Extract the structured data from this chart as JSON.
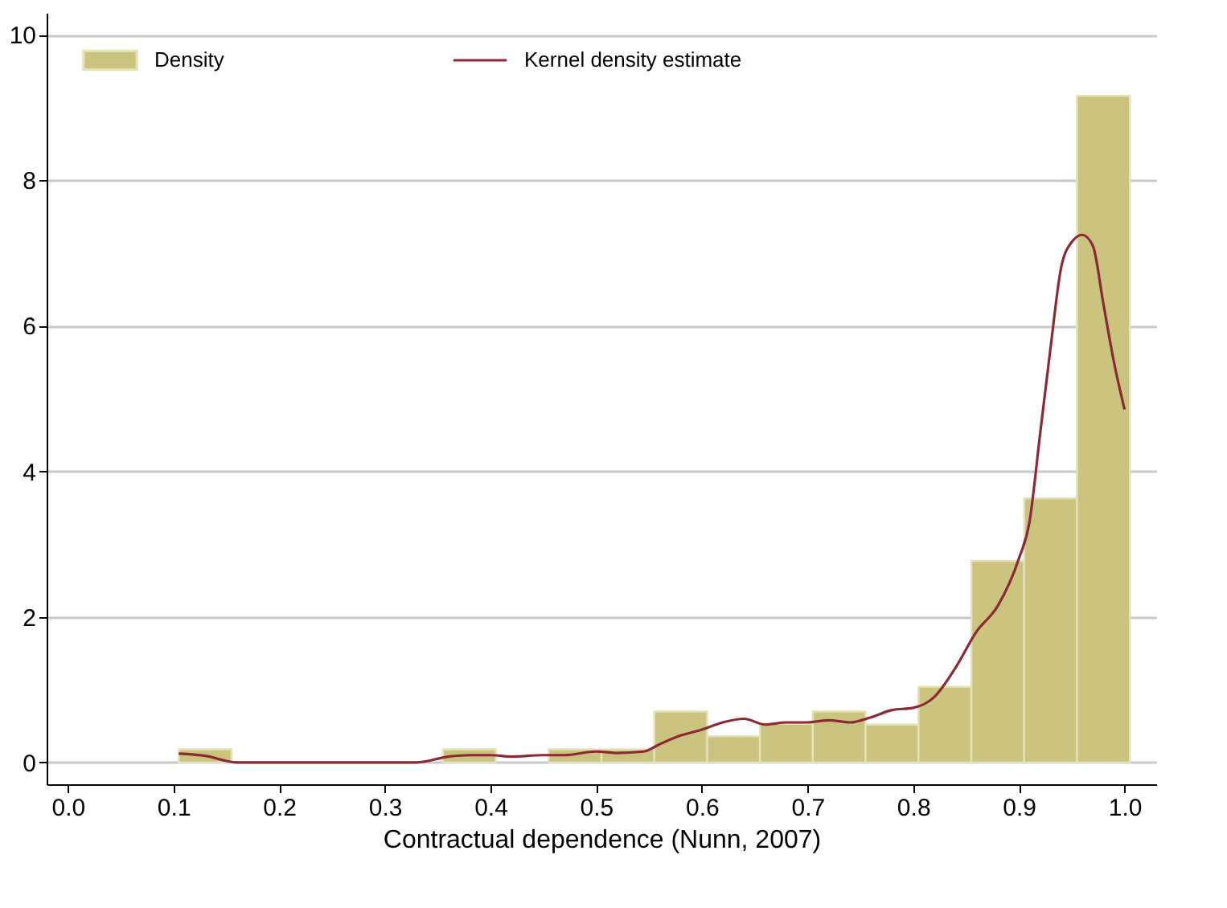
{
  "chart_data": {
    "type": "histogram",
    "xlabel": "Contractual dependence (Nunn, 2007)",
    "bins": [
      0.105,
      0.155,
      0.205,
      0.255,
      0.305,
      0.355,
      0.405,
      0.455,
      0.505,
      0.555,
      0.605,
      0.655,
      0.705,
      0.755,
      0.805,
      0.855,
      0.905,
      0.955,
      1.005
    ],
    "series": [
      {
        "name": "Density",
        "type": "histogram",
        "color": "#cbc47f",
        "values": [
          0.18,
          0,
          0,
          0,
          0,
          0.18,
          0,
          0.18,
          0.18,
          0.7,
          0.36,
          0.53,
          0.7,
          0.52,
          1.04,
          2.77,
          3.63,
          9.16
        ]
      },
      {
        "name": "Kernel density estimate",
        "type": "line",
        "color": "#8b2a35",
        "x": [
          0.105,
          0.13,
          0.16,
          0.2,
          0.3,
          0.33,
          0.36,
          0.38,
          0.4,
          0.42,
          0.45,
          0.47,
          0.5,
          0.52,
          0.545,
          0.56,
          0.58,
          0.6,
          0.62,
          0.64,
          0.66,
          0.68,
          0.7,
          0.72,
          0.74,
          0.76,
          0.78,
          0.8,
          0.82,
          0.84,
          0.86,
          0.88,
          0.9,
          0.91,
          0.92,
          0.93,
          0.94,
          0.95,
          0.96,
          0.97,
          0.98,
          0.99,
          1.0
        ],
        "values": [
          0.12,
          0.09,
          0,
          0,
          0,
          0,
          0.08,
          0.1,
          0.1,
          0.08,
          0.1,
          0.1,
          0.15,
          0.13,
          0.15,
          0.25,
          0.37,
          0.45,
          0.55,
          0.6,
          0.52,
          0.55,
          0.55,
          0.58,
          0.55,
          0.62,
          0.72,
          0.75,
          0.9,
          1.3,
          1.8,
          2.15,
          2.8,
          3.3,
          4.5,
          5.7,
          6.8,
          7.15,
          7.25,
          7.1,
          6.3,
          5.5,
          4.85
        ]
      }
    ],
    "xlim": [
      -0.02,
      1.03
    ],
    "xticks": [
      {
        "value": 0,
        "label": "0.0"
      },
      0.1,
      0.2,
      0.3,
      0.4,
      0.5,
      0.6,
      0.7,
      0.8,
      0.9,
      {
        "value": 1,
        "label": "1.0"
      }
    ],
    "ylim": [
      -0.3,
      10.3
    ],
    "yticks": [
      0,
      2,
      4,
      6,
      8,
      10
    ],
    "grid": "y",
    "legend": "top"
  }
}
